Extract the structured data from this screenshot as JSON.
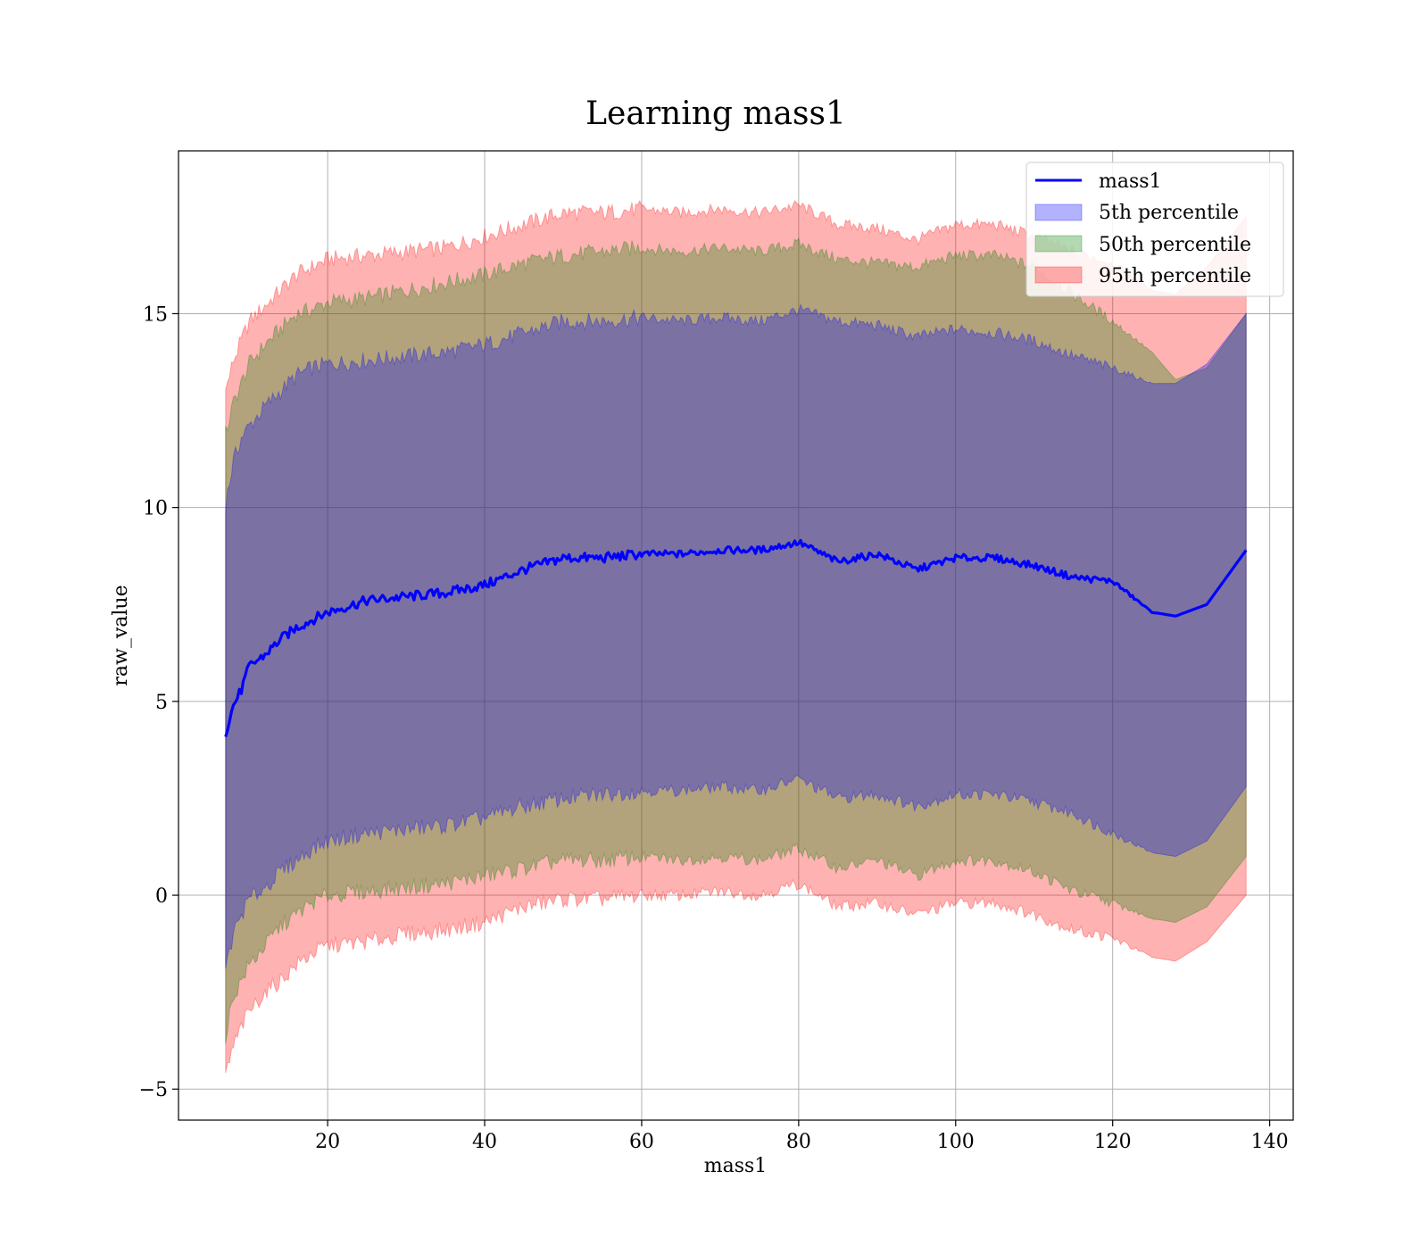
{
  "chart_data": {
    "type": "area",
    "title": "Learning mass1",
    "xlabel": "mass1",
    "ylabel": "raw_value",
    "xlim": [
      1,
      143
    ],
    "ylim": [
      -5.8,
      19.2
    ],
    "xticks": [
      20,
      40,
      60,
      80,
      100,
      120,
      140
    ],
    "xtick_labels": [
      "20",
      "40",
      "60",
      "80",
      "100",
      "120",
      "140"
    ],
    "yticks": [
      -5,
      0,
      5,
      10,
      15
    ],
    "ytick_labels": [
      "−5",
      "0",
      "5",
      "10",
      "15"
    ],
    "grid": true,
    "legend_position": "top-right",
    "legend": [
      {
        "label": "mass1",
        "kind": "line",
        "color": "#0000ff"
      },
      {
        "label": "5th percentile",
        "kind": "band",
        "color": "#0000ff"
      },
      {
        "label": "50th percentile",
        "kind": "band",
        "color": "#008000"
      },
      {
        "label": "95th percentile",
        "kind": "band",
        "color": "#ff0000"
      }
    ],
    "colors": {
      "line": "#0000ff",
      "band_5": "#0000ff",
      "band_50": "#008000",
      "band_95": "#ff0000"
    },
    "x": [
      7,
      8,
      9,
      10,
      12,
      14,
      16,
      18,
      20,
      25,
      30,
      35,
      40,
      45,
      50,
      55,
      60,
      65,
      70,
      75,
      80,
      85,
      90,
      95,
      100,
      105,
      110,
      115,
      120,
      125,
      128,
      132,
      137
    ],
    "mass1": [
      4.2,
      4.9,
      5.3,
      5.9,
      6.2,
      6.6,
      6.9,
      7.1,
      7.3,
      7.6,
      7.7,
      7.8,
      8.0,
      8.4,
      8.7,
      8.7,
      8.8,
      8.8,
      8.9,
      8.9,
      9.1,
      8.6,
      8.8,
      8.4,
      8.7,
      8.7,
      8.5,
      8.2,
      8.1,
      7.3,
      7.2,
      7.5,
      8.9
    ],
    "upper_95": [
      13.0,
      13.8,
      14.3,
      14.8,
      15.2,
      15.6,
      16.0,
      16.2,
      16.4,
      16.5,
      16.6,
      16.7,
      17.0,
      17.3,
      17.6,
      17.6,
      17.7,
      17.6,
      17.7,
      17.6,
      17.8,
      17.3,
      17.2,
      16.9,
      17.3,
      17.3,
      17.0,
      16.6,
      16.3,
      15.6,
      15.5,
      16.2,
      17.5
    ],
    "upper_50": [
      11.9,
      12.7,
      13.2,
      13.7,
      14.2,
      14.6,
      15.0,
      15.1,
      15.3,
      15.4,
      15.6,
      15.8,
      16.0,
      16.3,
      16.5,
      16.6,
      16.7,
      16.6,
      16.7,
      16.6,
      16.8,
      16.4,
      16.3,
      16.2,
      16.5,
      16.5,
      16.2,
      15.5,
      14.8,
      14.0,
      13.3,
      13.6,
      15.0
    ],
    "upper_5": [
      10.1,
      11.2,
      11.8,
      12.1,
      12.6,
      13.0,
      13.4,
      13.6,
      13.7,
      13.8,
      13.9,
      14.0,
      14.2,
      14.5,
      14.8,
      14.8,
      14.9,
      14.8,
      14.9,
      14.8,
      15.1,
      14.8,
      14.7,
      14.4,
      14.6,
      14.5,
      14.3,
      13.9,
      13.6,
      13.2,
      13.2,
      13.7,
      15.0
    ],
    "lower_5": [
      -1.9,
      -1.0,
      -0.5,
      -0.1,
      0.2,
      0.6,
      0.9,
      1.2,
      1.4,
      1.6,
      1.7,
      1.8,
      2.0,
      2.3,
      2.5,
      2.6,
      2.7,
      2.7,
      2.8,
      2.7,
      3.0,
      2.5,
      2.6,
      2.3,
      2.6,
      2.6,
      2.4,
      2.1,
      1.6,
      1.1,
      1.0,
      1.4,
      2.8
    ],
    "lower_50": [
      -3.6,
      -2.6,
      -2.2,
      -1.8,
      -1.3,
      -0.8,
      -0.5,
      -0.2,
      0.0,
      0.1,
      0.2,
      0.3,
      0.5,
      0.7,
      0.9,
      0.9,
      1.0,
      0.9,
      1.0,
      0.9,
      1.2,
      0.7,
      0.9,
      0.5,
      0.9,
      0.9,
      0.6,
      0.1,
      -0.2,
      -0.6,
      -0.7,
      -0.3,
      1.0
    ],
    "lower_95": [
      -4.6,
      -3.9,
      -3.4,
      -3.0,
      -2.5,
      -2.2,
      -1.8,
      -1.5,
      -1.3,
      -1.2,
      -1.0,
      -0.9,
      -0.7,
      -0.3,
      -0.1,
      -0.1,
      0.0,
      0.0,
      0.1,
      0.0,
      0.3,
      -0.3,
      -0.2,
      -0.5,
      -0.2,
      -0.2,
      -0.5,
      -0.9,
      -1.1,
      -1.6,
      -1.7,
      -1.2,
      0.0
    ]
  }
}
